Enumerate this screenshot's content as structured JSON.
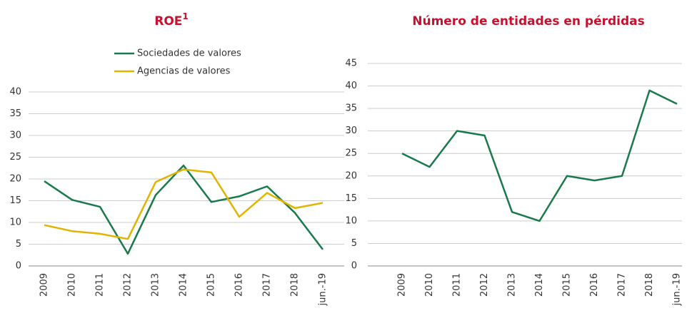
{
  "chart_data": [
    {
      "type": "line",
      "title": "ROE",
      "title_note": "1",
      "categories": [
        "2009",
        "2010",
        "2011",
        "2012",
        "2013",
        "2014",
        "2015",
        "2016",
        "2017",
        "2018",
        "jun.-19"
      ],
      "series": [
        {
          "name": "Sociedades de valores",
          "color": "#1a7a4c",
          "values": [
            19.5,
            15.2,
            13.6,
            2.8,
            16.3,
            23.1,
            14.7,
            16.0,
            18.3,
            12.2,
            3.8
          ]
        },
        {
          "name": "Agencias de valores",
          "color": "#e0b400",
          "values": [
            9.4,
            8.0,
            7.4,
            6.2,
            19.3,
            22.2,
            21.5,
            11.3,
            16.8,
            13.3,
            14.5
          ]
        }
      ],
      "ylim": [
        0,
        40
      ],
      "yticks": [
        0,
        5,
        10,
        15,
        20,
        25,
        30,
        35,
        40
      ],
      "grid": true,
      "legend": "top"
    },
    {
      "type": "line",
      "title": "Número de entidades en pérdidas",
      "categories": [
        "2009",
        "2010",
        "2011",
        "2012",
        "2013",
        "2014",
        "2015",
        "2016",
        "2017",
        "2018",
        "jun.-19"
      ],
      "values": [
        25,
        22,
        30,
        29,
        12,
        10,
        20,
        19,
        20,
        39,
        36
      ],
      "color": "#1a7a4c",
      "ylim": [
        0,
        45
      ],
      "yticks": [
        0,
        5,
        10,
        15,
        20,
        25,
        30,
        35,
        40,
        45
      ],
      "grid": true
    }
  ]
}
